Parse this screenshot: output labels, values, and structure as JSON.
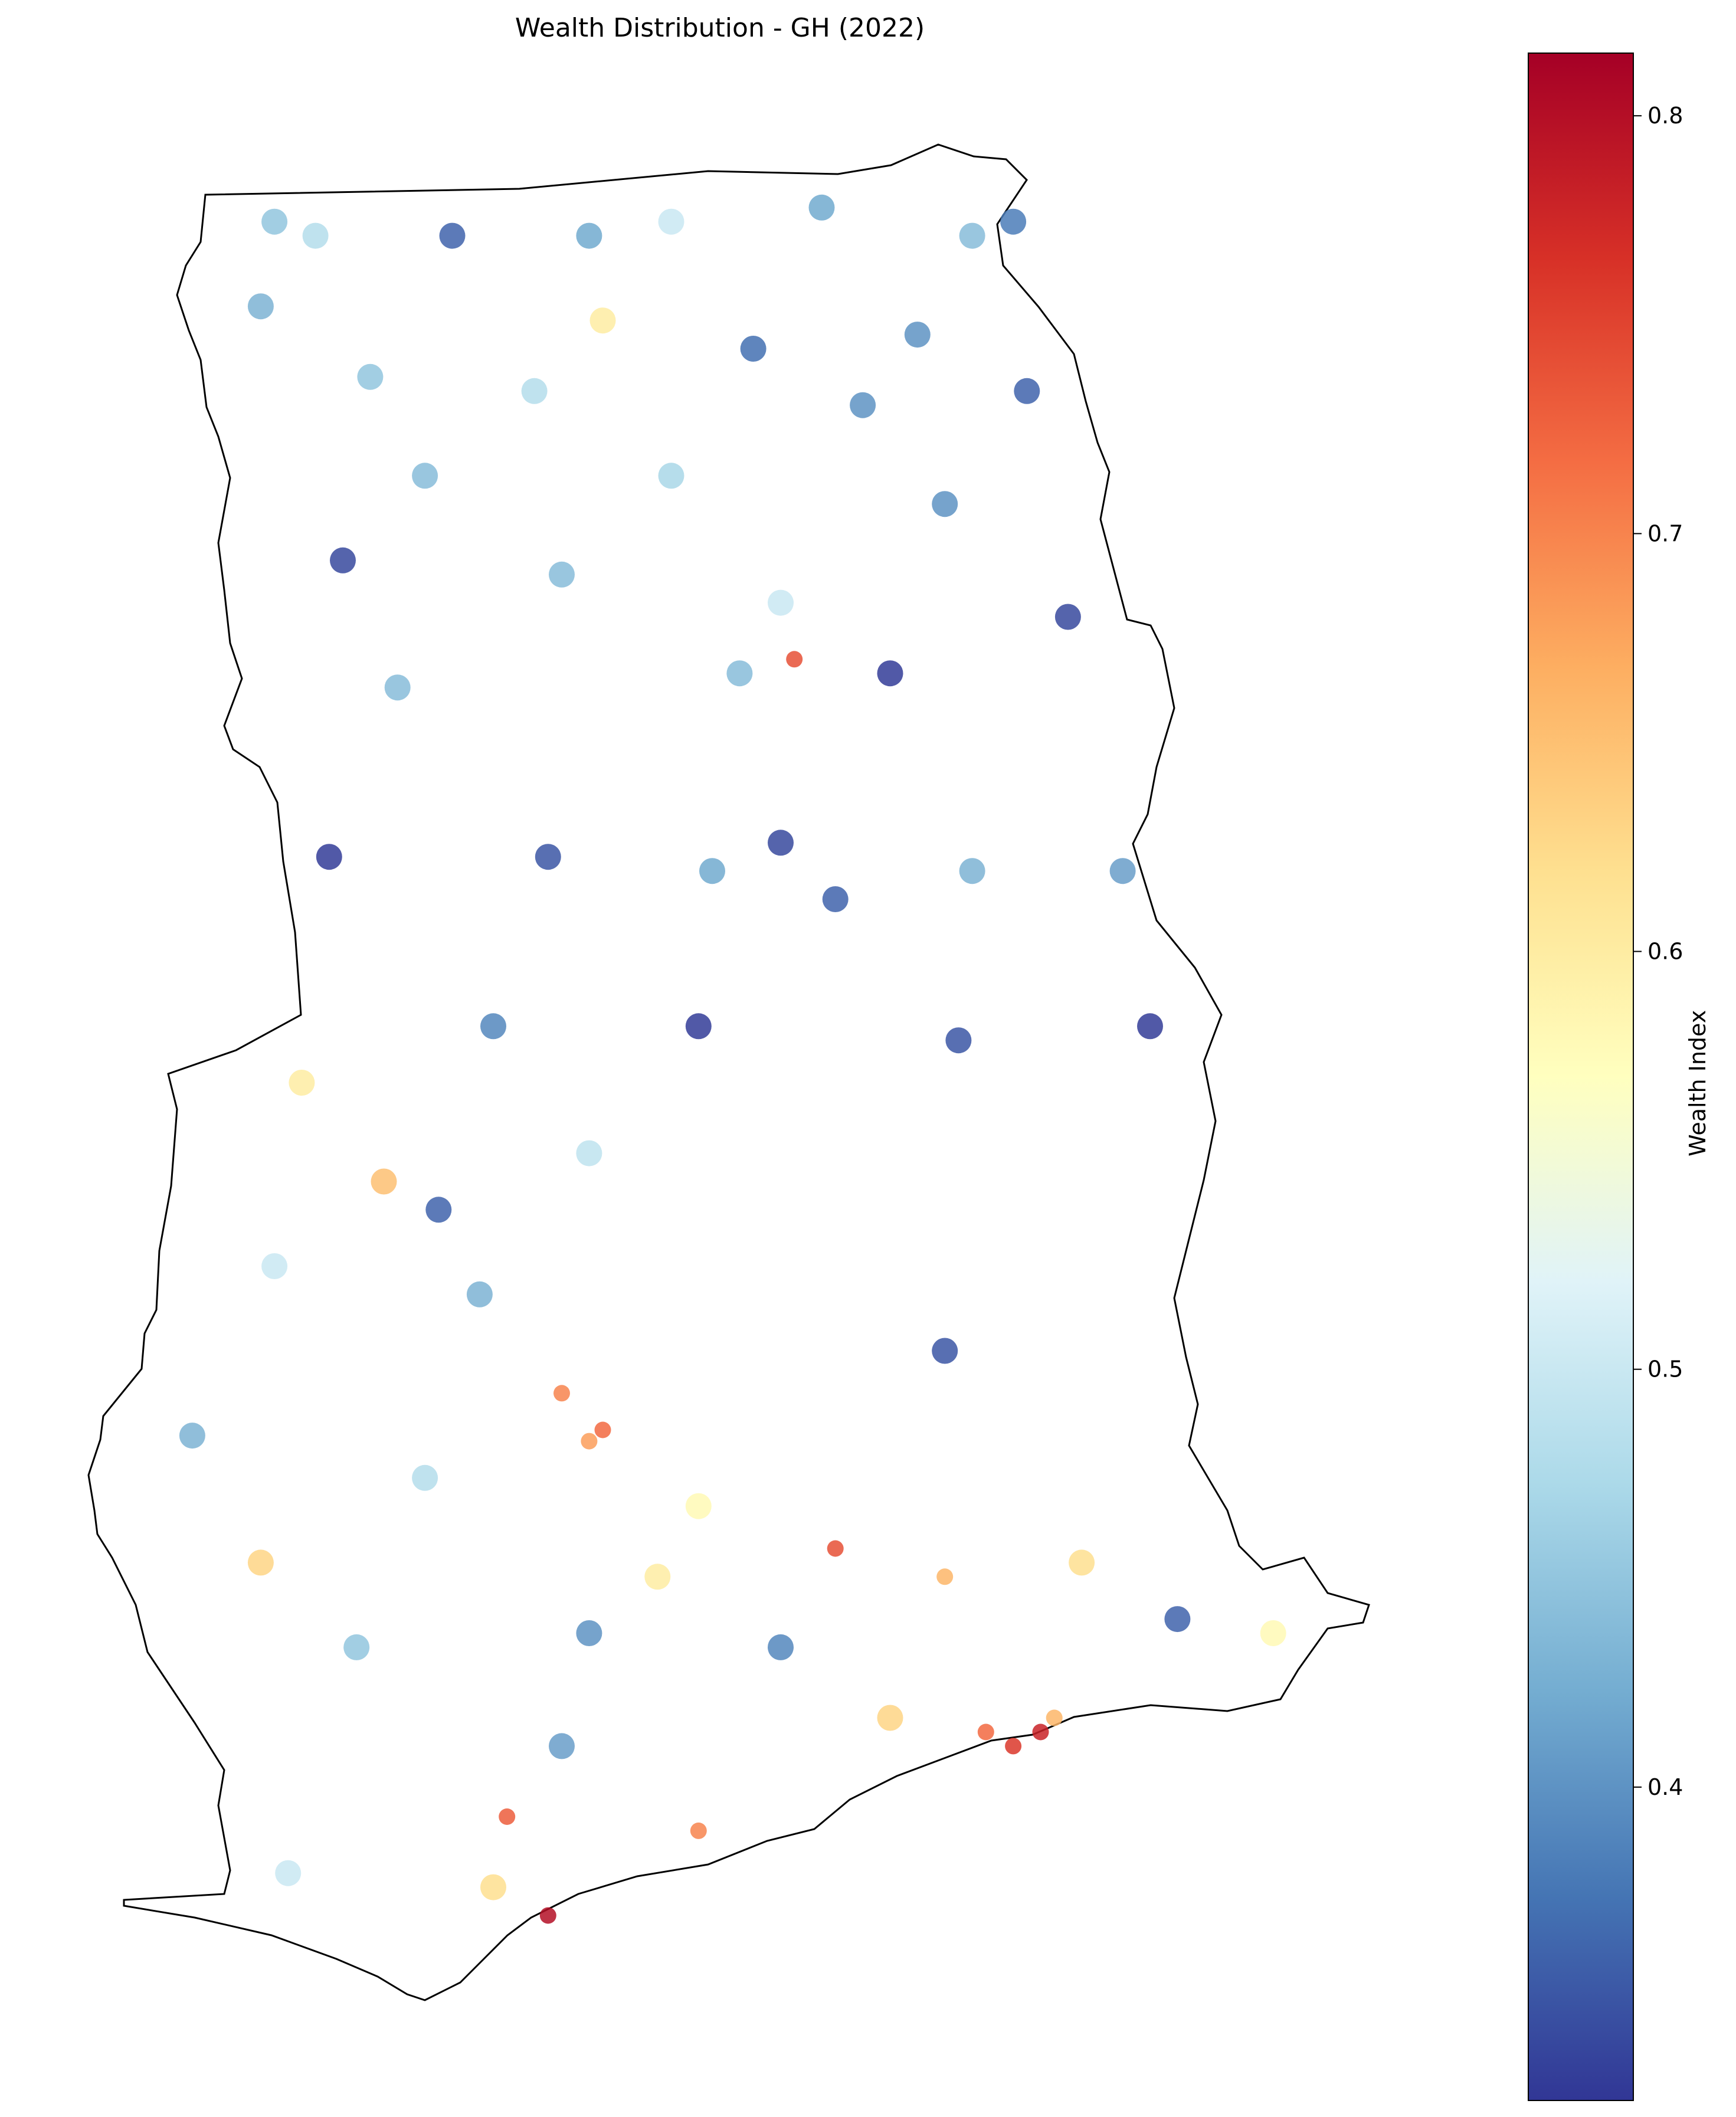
{
  "title": "Wealth Distribution - GH (2022)",
  "colorbar": {
    "label": "Wealth Index",
    "min": 0.325,
    "max": 0.815,
    "ticks": [
      "0.4",
      "0.5",
      "0.6",
      "0.7",
      "0.8"
    ],
    "colormap": [
      "#313695",
      "#4575b4",
      "#74add1",
      "#abd9e9",
      "#e0f3f8",
      "#ffffbf",
      "#fee090",
      "#fdae61",
      "#f46d43",
      "#d73027",
      "#a50026"
    ]
  },
  "chart_data": {
    "type": "scatter",
    "title": "Wealth Distribution - GH (2022)",
    "value_label": "Wealth Index",
    "color_range": [
      0.325,
      0.815
    ],
    "grid": false,
    "legend": "colorbar-right",
    "points": [
      {
        "lon": -2.75,
        "lat": 11.0,
        "v": 0.45
      },
      {
        "lon": -2.6,
        "lat": 10.95,
        "v": 0.48
      },
      {
        "lon": -2.1,
        "lat": 10.95,
        "v": 0.36
      },
      {
        "lon": -1.6,
        "lat": 10.95,
        "v": 0.42
      },
      {
        "lon": -1.3,
        "lat": 11.0,
        "v": 0.5
      },
      {
        "lon": -0.75,
        "lat": 11.05,
        "v": 0.42
      },
      {
        "lon": -0.2,
        "lat": 10.95,
        "v": 0.44
      },
      {
        "lon": -0.05,
        "lat": 11.0,
        "v": 0.38
      },
      {
        "lon": -2.8,
        "lat": 10.7,
        "v": 0.43
      },
      {
        "lon": -1.55,
        "lat": 10.65,
        "v": 0.6
      },
      {
        "lon": -1.0,
        "lat": 10.55,
        "v": 0.37
      },
      {
        "lon": -0.4,
        "lat": 10.6,
        "v": 0.4
      },
      {
        "lon": -2.4,
        "lat": 10.45,
        "v": 0.45
      },
      {
        "lon": -1.8,
        "lat": 10.4,
        "v": 0.48
      },
      {
        "lon": -0.6,
        "lat": 10.35,
        "v": 0.4
      },
      {
        "lon": 0.0,
        "lat": 10.4,
        "v": 0.36
      },
      {
        "lon": -2.2,
        "lat": 10.1,
        "v": 0.44
      },
      {
        "lon": -1.3,
        "lat": 10.1,
        "v": 0.47
      },
      {
        "lon": -0.3,
        "lat": 10.0,
        "v": 0.4
      },
      {
        "lon": -2.5,
        "lat": 9.8,
        "v": 0.34
      },
      {
        "lon": -1.7,
        "lat": 9.75,
        "v": 0.44
      },
      {
        "lon": -0.9,
        "lat": 9.65,
        "v": 0.5
      },
      {
        "lon": -0.85,
        "lat": 9.45,
        "v": 0.74
      },
      {
        "lon": -0.5,
        "lat": 9.4,
        "v": 0.33
      },
      {
        "lon": -2.3,
        "lat": 9.35,
        "v": 0.44
      },
      {
        "lon": -1.05,
        "lat": 9.4,
        "v": 0.44
      },
      {
        "lon": 0.15,
        "lat": 9.6,
        "v": 0.34
      },
      {
        "lon": -2.55,
        "lat": 8.75,
        "v": 0.33
      },
      {
        "lon": -1.75,
        "lat": 8.75,
        "v": 0.35
      },
      {
        "lon": -1.15,
        "lat": 8.7,
        "v": 0.42
      },
      {
        "lon": -0.7,
        "lat": 8.6,
        "v": 0.36
      },
      {
        "lon": -0.9,
        "lat": 8.8,
        "v": 0.34
      },
      {
        "lon": -0.2,
        "lat": 8.7,
        "v": 0.43
      },
      {
        "lon": 0.35,
        "lat": 8.7,
        "v": 0.41
      },
      {
        "lon": -1.95,
        "lat": 8.15,
        "v": 0.39
      },
      {
        "lon": -1.2,
        "lat": 8.15,
        "v": 0.33
      },
      {
        "lon": -0.25,
        "lat": 8.1,
        "v": 0.35
      },
      {
        "lon": 0.45,
        "lat": 8.15,
        "v": 0.33
      },
      {
        "lon": -2.65,
        "lat": 7.95,
        "v": 0.6
      },
      {
        "lon": -2.35,
        "lat": 7.6,
        "v": 0.65
      },
      {
        "lon": -1.6,
        "lat": 7.7,
        "v": 0.49
      },
      {
        "lon": -2.15,
        "lat": 7.5,
        "v": 0.36
      },
      {
        "lon": -2.75,
        "lat": 7.3,
        "v": 0.5
      },
      {
        "lon": -2.0,
        "lat": 7.2,
        "v": 0.43
      },
      {
        "lon": -0.3,
        "lat": 7.0,
        "v": 0.35
      },
      {
        "lon": -1.7,
        "lat": 6.85,
        "v": 0.7
      },
      {
        "lon": -1.55,
        "lat": 6.72,
        "v": 0.72
      },
      {
        "lon": -1.6,
        "lat": 6.68,
        "v": 0.68
      },
      {
        "lon": -3.05,
        "lat": 6.7,
        "v": 0.43
      },
      {
        "lon": -2.2,
        "lat": 6.55,
        "v": 0.48
      },
      {
        "lon": -1.2,
        "lat": 6.45,
        "v": 0.58
      },
      {
        "lon": -0.7,
        "lat": 6.3,
        "v": 0.74
      },
      {
        "lon": -2.8,
        "lat": 6.25,
        "v": 0.63
      },
      {
        "lon": -1.35,
        "lat": 6.2,
        "v": 0.6
      },
      {
        "lon": -0.3,
        "lat": 6.2,
        "v": 0.66
      },
      {
        "lon": 0.2,
        "lat": 6.25,
        "v": 0.62
      },
      {
        "lon": -2.45,
        "lat": 5.95,
        "v": 0.45
      },
      {
        "lon": -1.6,
        "lat": 6.0,
        "v": 0.4
      },
      {
        "lon": -0.9,
        "lat": 5.95,
        "v": 0.39
      },
      {
        "lon": 0.55,
        "lat": 6.05,
        "v": 0.36
      },
      {
        "lon": -1.7,
        "lat": 5.6,
        "v": 0.41
      },
      {
        "lon": -0.5,
        "lat": 5.7,
        "v": 0.63
      },
      {
        "lon": -0.15,
        "lat": 5.65,
        "v": 0.72
      },
      {
        "lon": -0.05,
        "lat": 5.6,
        "v": 0.76
      },
      {
        "lon": 0.05,
        "lat": 5.65,
        "v": 0.78
      },
      {
        "lon": 0.1,
        "lat": 5.7,
        "v": 0.66
      },
      {
        "lon": -1.9,
        "lat": 5.35,
        "v": 0.73
      },
      {
        "lon": -1.2,
        "lat": 5.3,
        "v": 0.7
      },
      {
        "lon": -1.75,
        "lat": 5.0,
        "v": 0.8
      },
      {
        "lon": -1.95,
        "lat": 5.1,
        "v": 0.62
      },
      {
        "lon": -2.7,
        "lat": 5.15,
        "v": 0.5
      },
      {
        "lon": 0.9,
        "lat": 6.0,
        "v": 0.58
      }
    ]
  }
}
